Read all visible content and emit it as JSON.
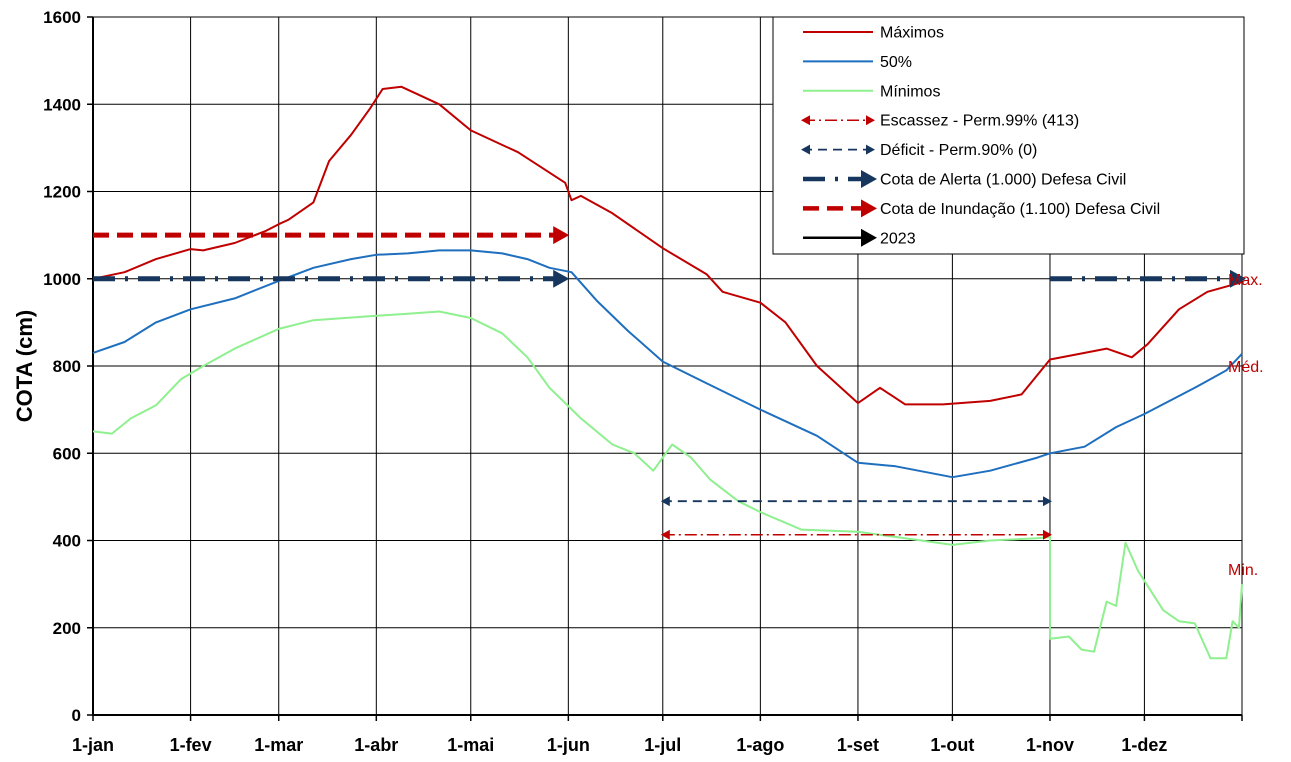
{
  "chart_data": {
    "type": "line",
    "ylabel": "COTA (cm)",
    "xlabel": "",
    "ylim": [
      0,
      1600
    ],
    "yticks": [
      0,
      200,
      400,
      600,
      800,
      1000,
      1200,
      1400,
      1600
    ],
    "xlim": [
      0,
      365
    ],
    "xticks": [
      {
        "label": "1-jan",
        "day": 0
      },
      {
        "label": "1-fev",
        "day": 31
      },
      {
        "label": "1-mar",
        "day": 59
      },
      {
        "label": "1-abr",
        "day": 90
      },
      {
        "label": "1-mai",
        "day": 120
      },
      {
        "label": "1-jun",
        "day": 151
      },
      {
        "label": "1-jul",
        "day": 181
      },
      {
        "label": "1-ago",
        "day": 212
      },
      {
        "label": "1-set",
        "day": 243
      },
      {
        "label": "1-out",
        "day": 273
      },
      {
        "label": "1-nov",
        "day": 304
      },
      {
        "label": "1-dez",
        "day": 334
      }
    ],
    "grid": true,
    "legend_position": "top-right",
    "series": [
      {
        "name": "Máximos",
        "color": "#c00000",
        "points": [
          [
            0,
            1000
          ],
          [
            10,
            1015
          ],
          [
            20,
            1045
          ],
          [
            31,
            1068
          ],
          [
            35,
            1065
          ],
          [
            45,
            1082
          ],
          [
            55,
            1110
          ],
          [
            59,
            1125
          ],
          [
            62,
            1135
          ],
          [
            70,
            1175
          ],
          [
            75,
            1270
          ],
          [
            82,
            1330
          ],
          [
            88,
            1390
          ],
          [
            92,
            1435
          ],
          [
            98,
            1440
          ],
          [
            110,
            1400
          ],
          [
            120,
            1340
          ],
          [
            135,
            1290
          ],
          [
            150,
            1220
          ],
          [
            152,
            1180
          ],
          [
            155,
            1190
          ],
          [
            165,
            1150
          ],
          [
            181,
            1070
          ],
          [
            195,
            1010
          ],
          [
            200,
            970
          ],
          [
            212,
            945
          ],
          [
            220,
            900
          ],
          [
            230,
            800
          ],
          [
            243,
            715
          ],
          [
            250,
            750
          ],
          [
            258,
            712
          ],
          [
            270,
            712
          ],
          [
            285,
            720
          ],
          [
            295,
            735
          ],
          [
            304,
            815
          ],
          [
            315,
            830
          ],
          [
            322,
            840
          ],
          [
            330,
            820
          ],
          [
            335,
            850
          ],
          [
            345,
            930
          ],
          [
            354,
            970
          ],
          [
            365,
            992
          ]
        ]
      },
      {
        "name": "50%",
        "color": "#1f6fbf",
        "points": [
          [
            0,
            830
          ],
          [
            10,
            855
          ],
          [
            20,
            900
          ],
          [
            31,
            930
          ],
          [
            45,
            955
          ],
          [
            59,
            995
          ],
          [
            70,
            1025
          ],
          [
            82,
            1045
          ],
          [
            90,
            1055
          ],
          [
            100,
            1058
          ],
          [
            110,
            1065
          ],
          [
            120,
            1065
          ],
          [
            130,
            1058
          ],
          [
            138,
            1045
          ],
          [
            145,
            1025
          ],
          [
            152,
            1015
          ],
          [
            160,
            950
          ],
          [
            170,
            880
          ],
          [
            181,
            810
          ],
          [
            195,
            760
          ],
          [
            212,
            700
          ],
          [
            230,
            640
          ],
          [
            243,
            578
          ],
          [
            255,
            570
          ],
          [
            273,
            545
          ],
          [
            285,
            560
          ],
          [
            300,
            590
          ],
          [
            304,
            600
          ],
          [
            315,
            615
          ],
          [
            325,
            660
          ],
          [
            334,
            690
          ],
          [
            350,
            750
          ],
          [
            360,
            790
          ],
          [
            365,
            828
          ]
        ]
      },
      {
        "name": "Mínimos",
        "color": "#8ef08e",
        "points": [
          [
            0,
            650
          ],
          [
            6,
            645
          ],
          [
            12,
            680
          ],
          [
            20,
            710
          ],
          [
            28,
            770
          ],
          [
            35,
            800
          ],
          [
            45,
            840
          ],
          [
            59,
            885
          ],
          [
            70,
            905
          ],
          [
            80,
            910
          ],
          [
            90,
            915
          ],
          [
            100,
            920
          ],
          [
            110,
            925
          ],
          [
            120,
            910
          ],
          [
            130,
            875
          ],
          [
            138,
            820
          ],
          [
            145,
            750
          ],
          [
            155,
            680
          ],
          [
            165,
            620
          ],
          [
            172,
            600
          ],
          [
            178,
            560
          ],
          [
            184,
            620
          ],
          [
            190,
            590
          ],
          [
            196,
            540
          ],
          [
            205,
            490
          ],
          [
            212,
            465
          ],
          [
            225,
            425
          ],
          [
            243,
            420
          ],
          [
            258,
            405
          ],
          [
            273,
            390
          ],
          [
            285,
            400
          ],
          [
            300,
            405
          ],
          [
            304,
            408
          ],
          [
            304,
            175
          ],
          [
            310,
            180
          ],
          [
            314,
            150
          ],
          [
            318,
            145
          ],
          [
            322,
            260
          ],
          [
            325,
            250
          ],
          [
            328,
            395
          ],
          [
            332,
            330
          ],
          [
            340,
            240
          ],
          [
            345,
            215
          ],
          [
            350,
            210
          ],
          [
            355,
            130
          ],
          [
            360,
            130
          ],
          [
            362,
            215
          ],
          [
            364,
            200
          ],
          [
            365,
            300
          ]
        ]
      },
      {
        "name": "Escassez - Perm.99% (413)",
        "color": "#c00000",
        "style": "dash-dot-arrows-both",
        "points": [
          [
            181,
            413
          ],
          [
            304,
            413
          ]
        ]
      },
      {
        "name": "Déficit - Perm.90% (0)",
        "color": "#17365d",
        "style": "dashed-arrows-both",
        "points": [
          [
            181,
            490
          ],
          [
            304,
            490
          ]
        ]
      },
      {
        "name": "Cota de Alerta  (1.000) Defesa Civil",
        "color": "#17365d",
        "style": "thick-dash-dot-arrow",
        "segments": [
          [
            [
              0,
              1000
            ],
            [
              150,
              1000
            ]
          ],
          [
            [
              304,
              1000
            ],
            [
              365,
              1000
            ]
          ]
        ]
      },
      {
        "name": "Cota de Inundação (1.100) Defesa Civil",
        "color": "#c00000",
        "style": "thick-dash-arrow",
        "points": [
          [
            0,
            1100
          ],
          [
            150,
            1100
          ]
        ]
      },
      {
        "name": "2023",
        "color": "#000000",
        "style": "solid-arrow",
        "points": []
      }
    ],
    "side_labels": [
      {
        "text": "Max.",
        "day": 365,
        "value": 1000
      },
      {
        "text": "Méd.",
        "day": 365,
        "value": 800
      },
      {
        "text": "Min.",
        "day": 365,
        "value": 335
      }
    ]
  }
}
